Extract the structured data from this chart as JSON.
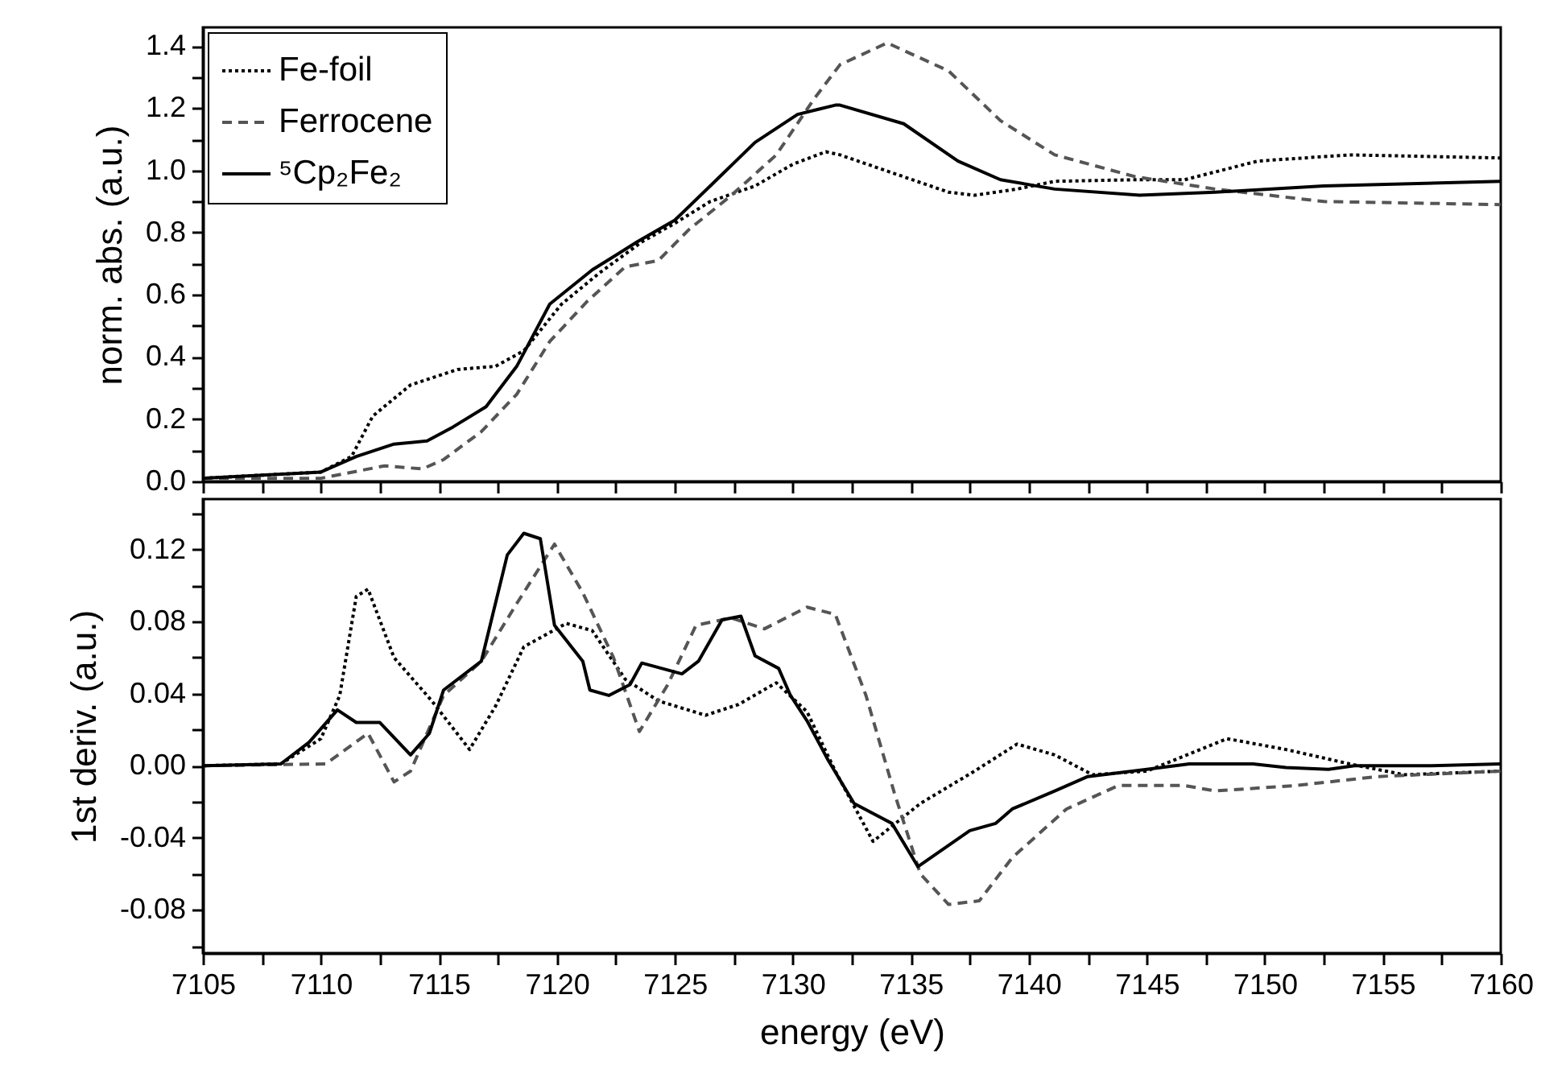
{
  "chart_data": [
    {
      "type": "line",
      "ylabel": "norm. abs. (a.u.)",
      "legend": "top left",
      "tick_labels": "y",
      "xlim": [
        7105,
        7160
      ],
      "xticks": [
        7105,
        {
          "value": 7107.5,
          "label": null
        },
        7110,
        {
          "value": 7112.5,
          "label": null
        },
        7115,
        {
          "value": 7117.5,
          "label": null
        },
        7120,
        {
          "value": 7122.5,
          "label": null
        },
        7125,
        {
          "value": 7127.5,
          "label": null
        },
        7130,
        {
          "value": 7132.5,
          "label": null
        },
        7135,
        {
          "value": 7137.5,
          "label": null
        },
        7140,
        {
          "value": 7142.5,
          "label": null
        },
        7145,
        {
          "value": 7147.5,
          "label": null
        },
        7150,
        {
          "value": 7152.5,
          "label": null
        },
        7155,
        {
          "value": 7157.5,
          "label": null
        },
        7160
      ],
      "ylim": [
        0,
        1.46
      ],
      "yticks": [
        {
          "value": 0,
          "label": "0.0"
        },
        {
          "value": 0.1,
          "label": null
        },
        0.2,
        {
          "value": 0.3,
          "label": null
        },
        0.4,
        {
          "value": 0.5,
          "label": null
        },
        0.6,
        {
          "value": 0.7,
          "label": null
        },
        0.8,
        {
          "value": 0.9,
          "label": null
        },
        {
          "value": 1,
          "label": "1.0"
        },
        {
          "value": 1.1,
          "label": null
        },
        1.2,
        {
          "value": 1.3,
          "label": null
        },
        1.4
      ],
      "series": [
        {
          "name": "Fe-foil",
          "color": "#000000",
          "line_style": "dotted",
          "x": [
            7105,
            7110,
            7111.3,
            7112.2,
            7113.8,
            7115.8,
            7117.4,
            7118.6,
            7120.2,
            7121.8,
            7123.6,
            7125,
            7126.5,
            7128.4,
            7130,
            7131.4,
            7132,
            7134.3,
            7136.6,
            7137.7,
            7139.5,
            7141.1,
            7144.5,
            7146.6,
            7149.7,
            7153.6,
            7160
          ],
          "values": [
            0.01,
            0.03,
            0.08,
            0.21,
            0.31,
            0.36,
            0.37,
            0.42,
            0.57,
            0.67,
            0.77,
            0.83,
            0.9,
            0.95,
            1.02,
            1.06,
            1.05,
            0.99,
            0.93,
            0.92,
            0.94,
            0.965,
            0.97,
            0.97,
            1.03,
            1.05,
            1.04
          ]
        },
        {
          "name": "Ferrocene",
          "color": "#555555",
          "line_style": "dashed",
          "x": [
            7105,
            7110,
            7112.7,
            7114.3,
            7115.2,
            7116.8,
            7118.3,
            7119.7,
            7121.3,
            7122.9,
            7124.3,
            7125.6,
            7127.4,
            7129.3,
            7130.9,
            7132,
            7134,
            7136.6,
            7138.8,
            7141.1,
            7144.5,
            7147.9,
            7152.5,
            7160
          ],
          "values": [
            0.01,
            0.01,
            0.05,
            0.04,
            0.07,
            0.16,
            0.28,
            0.45,
            0.58,
            0.69,
            0.71,
            0.81,
            0.92,
            1.05,
            1.23,
            1.34,
            1.41,
            1.32,
            1.16,
            1.05,
            0.98,
            0.94,
            0.9,
            0.89
          ]
        },
        {
          "name": "⁵Cp₂Fe₂",
          "color": "#000000",
          "line_style": "solid",
          "x": [
            7105,
            7110,
            7111.5,
            7113.1,
            7114.5,
            7115.6,
            7117,
            7118.3,
            7119.7,
            7121.5,
            7123.4,
            7125,
            7126.5,
            7128.4,
            7130.2,
            7131.8,
            7132,
            7134.7,
            7137,
            7138.8,
            7141.1,
            7144.7,
            7147.9,
            7152.5,
            7160
          ],
          "values": [
            0.01,
            0.03,
            0.08,
            0.12,
            0.13,
            0.175,
            0.24,
            0.37,
            0.57,
            0.68,
            0.77,
            0.84,
            0.95,
            1.09,
            1.18,
            1.21,
            1.21,
            1.15,
            1.03,
            0.97,
            0.94,
            0.92,
            0.93,
            0.95,
            0.965
          ]
        }
      ]
    },
    {
      "type": "line",
      "xlabel": "energy (eV)",
      "ylabel": "1st deriv. (a.u.)",
      "xlim": [
        7105,
        7160
      ],
      "xticks": [
        7105,
        {
          "value": 7107.5,
          "label": null
        },
        7110,
        {
          "value": 7112.5,
          "label": null
        },
        7115,
        {
          "value": 7117.5,
          "label": null
        },
        7120,
        {
          "value": 7122.5,
          "label": null
        },
        7125,
        {
          "value": 7127.5,
          "label": null
        },
        7130,
        {
          "value": 7132.5,
          "label": null
        },
        7135,
        {
          "value": 7137.5,
          "label": null
        },
        7140,
        {
          "value": 7142.5,
          "label": null
        },
        7145,
        {
          "value": 7147.5,
          "label": null
        },
        7150,
        {
          "value": 7152.5,
          "label": null
        },
        7155,
        {
          "value": 7157.5,
          "label": null
        },
        7160
      ],
      "ylim": [
        -0.104,
        0.148
      ],
      "yticks": [
        {
          "value": -0.1,
          "label": null
        },
        -0.08,
        {
          "value": -0.06,
          "label": null
        },
        -0.04,
        {
          "value": -0.02,
          "label": null
        },
        {
          "value": 0,
          "label": "0.00"
        },
        {
          "value": 0.02,
          "label": null
        },
        0.04,
        {
          "value": 0.06,
          "label": null
        },
        0.08,
        {
          "value": 0.1,
          "label": null
        },
        0.12,
        {
          "value": 0.14,
          "label": null
        }
      ],
      "series": [
        {
          "color": "#000000",
          "line_style": "dotted",
          "x": [
            7105,
            7108.3,
            7110,
            7110.8,
            7111.5,
            7112,
            7113.1,
            7114.7,
            7116.3,
            7117.4,
            7118.6,
            7120.4,
            7121.5,
            7122.9,
            7124.3,
            7126.3,
            7127.7,
            7129.3,
            7130.6,
            7131.8,
            7133.4,
            7135.4,
            7137.7,
            7139.5,
            7141.1,
            7142.7,
            7145,
            7148.4,
            7150.9,
            7153.6,
            7155.9,
            7160
          ],
          "values": [
            0,
            0.001,
            0.015,
            0.039,
            0.094,
            0.098,
            0.06,
            0.036,
            0.009,
            0.033,
            0.066,
            0.079,
            0.075,
            0.048,
            0.036,
            0.028,
            0.034,
            0.046,
            0.03,
            -0.003,
            -0.042,
            -0.021,
            -0.003,
            0.012,
            0.006,
            -0.005,
            -0.003,
            0.015,
            0.009,
            0.001,
            -0.005,
            -0.003
          ]
        },
        {
          "color": "#555555",
          "line_style": "dashed",
          "x": [
            7105,
            7110.2,
            7112,
            7113.1,
            7113.8,
            7115.2,
            7116.8,
            7118.3,
            7119.9,
            7121.1,
            7122.4,
            7123.5,
            7124.7,
            7125.9,
            7127.4,
            7128.8,
            7130.6,
            7131.8,
            7133.1,
            7134.3,
            7135.4,
            7136.6,
            7137.9,
            7139.3,
            7141.6,
            7143.8,
            7146.6,
            7147.9,
            7151.3,
            7154.8,
            7160
          ],
          "values": [
            0,
            0.001,
            0.018,
            -0.009,
            -0.003,
            0.039,
            0.058,
            0.09,
            0.123,
            0.096,
            0.06,
            0.019,
            0.045,
            0.078,
            0.082,
            0.076,
            0.088,
            0.084,
            0.039,
            -0.015,
            -0.06,
            -0.077,
            -0.075,
            -0.051,
            -0.024,
            -0.011,
            -0.011,
            -0.014,
            -0.011,
            -0.006,
            -0.003
          ]
        },
        {
          "color": "#000000",
          "line_style": "solid",
          "x": [
            7105,
            7108.3,
            7109.5,
            7110.7,
            7111.5,
            7112.5,
            7113.8,
            7114.6,
            7115.2,
            7116.8,
            7117.9,
            7118.6,
            7119.3,
            7119.9,
            7121.1,
            7121.4,
            7122.2,
            7123.1,
            7123.6,
            7125.3,
            7126,
            7127,
            7127.8,
            7128.4,
            7129.4,
            7129.9,
            7130.6,
            7131.5,
            7132.6,
            7134.2,
            7135.3,
            7137.5,
            7138.6,
            7139.3,
            7141.1,
            7142.5,
            7145,
            7146.8,
            7149.5,
            7150.9,
            7152.7,
            7153.8,
            7157,
            7160
          ],
          "values": [
            0,
            0.001,
            0.013,
            0.031,
            0.024,
            0.024,
            0.006,
            0.018,
            0.042,
            0.058,
            0.117,
            0.129,
            0.126,
            0.078,
            0.058,
            0.042,
            0.039,
            0.045,
            0.057,
            0.051,
            0.058,
            0.081,
            0.083,
            0.061,
            0.054,
            0.039,
            0.025,
            0.003,
            -0.021,
            -0.032,
            -0.056,
            -0.036,
            -0.032,
            -0.024,
            -0.014,
            -0.006,
            -0.002,
            0.001,
            0.001,
            -0.001,
            -0.002,
            0,
            0,
            0.001
          ]
        }
      ]
    }
  ]
}
